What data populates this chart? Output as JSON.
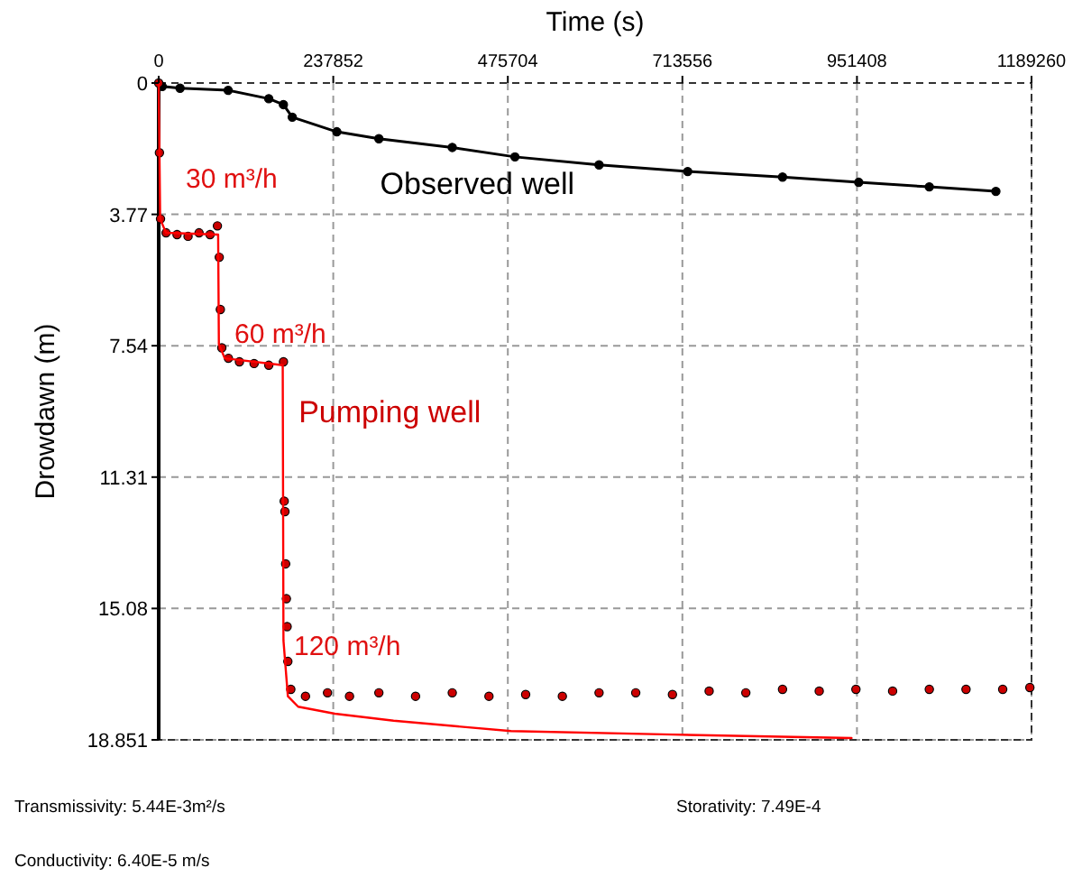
{
  "chart_data": {
    "type": "line",
    "xlabel": "Time (s)",
    "ylabel": "Drowdawn (m)",
    "xlim": [
      0,
      1189260
    ],
    "xticks": [
      0,
      237852,
      475704,
      713556,
      951408,
      1189260
    ],
    "ylim": [
      18.851,
      0
    ],
    "yticks": [
      0,
      3.77,
      7.54,
      11.31,
      15.08,
      18.851
    ],
    "grid": true,
    "legend": false,
    "series": [
      {
        "name": "Observed well",
        "type": "line",
        "marker": "circle",
        "color": "#000000",
        "x": [
          4854,
          29100,
          94650,
          150000,
          169900,
          182000,
          242700,
          300000,
          400000,
          485400,
          600000,
          720800,
          850000,
          953800,
          1050000,
          1140700
        ],
        "values": [
          0.1,
          0.15,
          0.21,
          0.45,
          0.62,
          0.98,
          1.4,
          1.6,
          1.85,
          2.12,
          2.35,
          2.54,
          2.7,
          2.85,
          2.98,
          3.11
        ]
      },
      {
        "name": "Pumping well",
        "type": "scatter",
        "marker": "circle",
        "color": "#cc0000",
        "x": [
          0,
          1000,
          2500,
          10000,
          25000,
          40000,
          55000,
          70000,
          80000,
          82500,
          84000,
          86000,
          95000,
          110000,
          130000,
          150000,
          170000,
          171000,
          172000,
          173000,
          174000,
          175000,
          176000,
          180000,
          200000,
          230000,
          260000,
          300000,
          350000,
          400000,
          450000,
          500000,
          550000,
          600000,
          650000,
          700000,
          750000,
          800000,
          850000,
          900000,
          950000,
          1000000,
          1050000,
          1100000,
          1150000,
          1187000
        ],
        "values": [
          0,
          2,
          3.9,
          4.3,
          4.35,
          4.4,
          4.3,
          4.35,
          4.1,
          5.0,
          6.5,
          7.6,
          7.9,
          8.0,
          8.05,
          8.1,
          8.0,
          12.0,
          12.3,
          13.8,
          14.8,
          15.6,
          16.6,
          17.4,
          17.6,
          17.5,
          17.6,
          17.5,
          17.6,
          17.5,
          17.6,
          17.55,
          17.6,
          17.5,
          17.5,
          17.55,
          17.45,
          17.5,
          17.4,
          17.45,
          17.4,
          17.45,
          17.4,
          17.4,
          17.4,
          17.35
        ]
      },
      {
        "marker": "none",
        "color": "#ff0000",
        "x": [
          0,
          2000,
          10000,
          81000,
          82000,
          90000,
          169000,
          170000,
          176000,
          190000,
          240000,
          320000,
          480000,
          700000,
          944000
        ],
        "values": [
          0,
          3.9,
          4.3,
          4.35,
          7.5,
          7.9,
          8.1,
          16.0,
          17.6,
          17.9,
          18.1,
          18.3,
          18.6,
          18.7,
          18.8
        ]
      }
    ],
    "annotations": [
      "30 m³/h",
      "60 m³/h",
      "120 m³/h",
      "Transmissivity: 5.44E-3m²/s",
      "Storativity: 7.49E-4",
      "Conductivity: 6.40E-5 m/s"
    ]
  }
}
